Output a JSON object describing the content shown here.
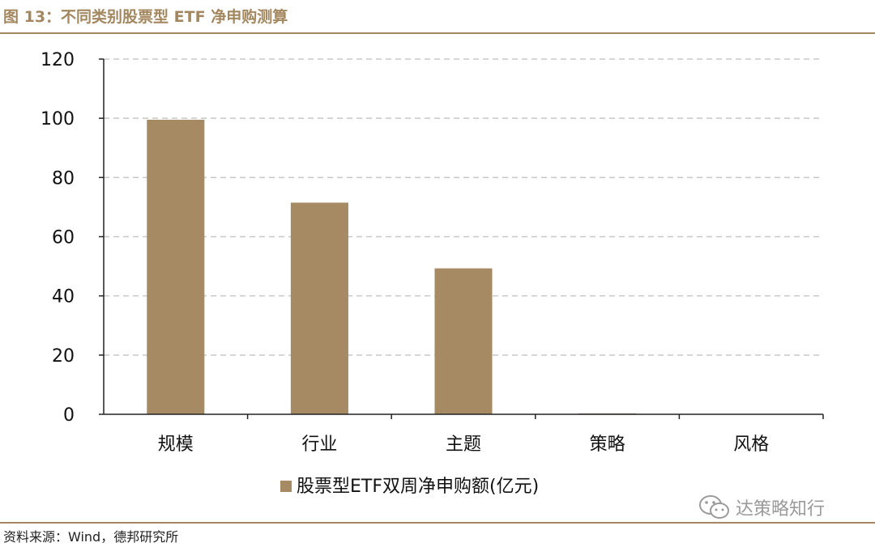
{
  "figure": {
    "title": "图 13：不同类别股票型 ETF 净申购测算",
    "source": "资料来源：Wind，德邦研究所",
    "watermark": "达策略知行",
    "watermark_icon": "wechat-icon"
  },
  "chart_data": {
    "type": "bar",
    "title": "",
    "xlabel": "",
    "ylabel": "",
    "categories": [
      "规模",
      "行业",
      "主题",
      "策略",
      "风格"
    ],
    "series": [
      {
        "name": "股票型ETF双周净申购额(亿元)",
        "values": [
          99.5,
          71.5,
          49.3,
          0.3,
          0.0
        ]
      }
    ],
    "ylim": [
      0,
      120
    ],
    "yticks": [
      0,
      20,
      40,
      60,
      80,
      100,
      120
    ],
    "grid": true,
    "legend_position": "bottom",
    "colors": {
      "bar": "#a58a64",
      "grid": "#c8c8c8",
      "axis": "#222222"
    }
  }
}
